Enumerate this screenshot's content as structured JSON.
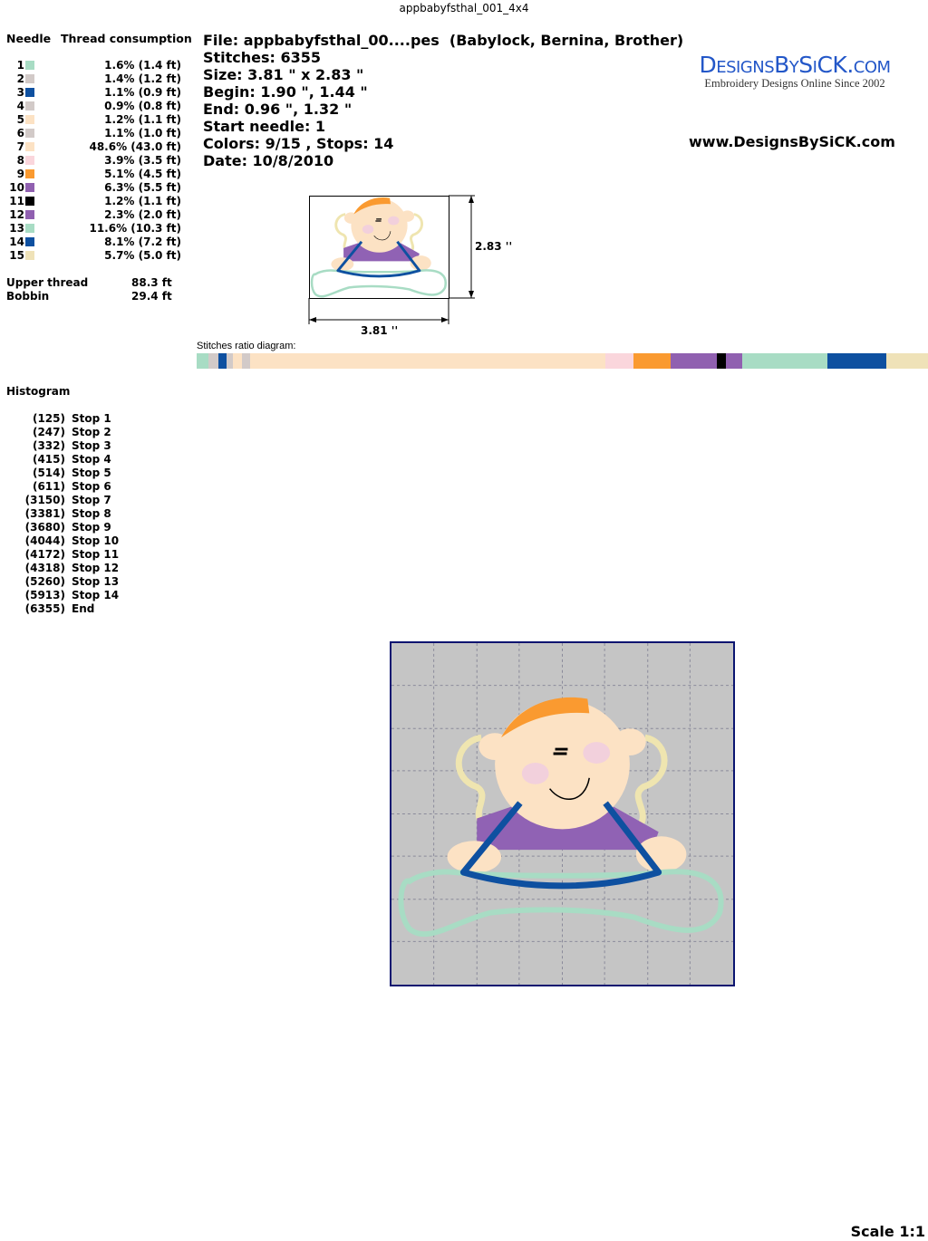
{
  "title": "appbabyfsthal_001_4x4",
  "table": {
    "header_needle": "Needle",
    "header_consumption": "Thread consumption",
    "rows": [
      {
        "n": "1",
        "color": "#a8dcc4",
        "v": "1.6% (1.4 ft)",
        "pct": 1.6
      },
      {
        "n": "2",
        "color": "#d2cac8",
        "v": "1.4% (1.2 ft)",
        "pct": 1.4
      },
      {
        "n": "3",
        "color": "#0e50a0",
        "v": "1.1% (0.9 ft)",
        "pct": 1.1
      },
      {
        "n": "4",
        "color": "#d2cac8",
        "v": "0.9% (0.8 ft)",
        "pct": 0.9
      },
      {
        "n": "5",
        "color": "#fce2c4",
        "v": "1.2% (1.1 ft)",
        "pct": 1.2
      },
      {
        "n": "6",
        "color": "#d2cac8",
        "v": "1.1% (1.0 ft)",
        "pct": 1.1
      },
      {
        "n": "7",
        "color": "#fce2c4",
        "v": "48.6% (43.0 ft)",
        "pct": 48.6
      },
      {
        "n": "8",
        "color": "#fad6dc",
        "v": "3.9% (3.5 ft)",
        "pct": 3.9
      },
      {
        "n": "9",
        "color": "#fa9a30",
        "v": "5.1% (4.5 ft)",
        "pct": 5.1
      },
      {
        "n": "10",
        "color": "#9060b0",
        "v": "6.3% (5.5 ft)",
        "pct": 6.3
      },
      {
        "n": "11",
        "color": "#000000",
        "v": "1.2% (1.1 ft)",
        "pct": 1.2
      },
      {
        "n": "12",
        "color": "#9060b0",
        "v": "2.3% (2.0 ft)",
        "pct": 2.3
      },
      {
        "n": "13",
        "color": "#a8dcc4",
        "v": "11.6% (10.3 ft)",
        "pct": 11.6
      },
      {
        "n": "14",
        "color": "#0e50a0",
        "v": "8.1% (7.2 ft)",
        "pct": 8.1
      },
      {
        "n": "15",
        "color": "#efe2b8",
        "v": "5.7% (5.0 ft)",
        "pct": 5.7
      }
    ],
    "upper_label": "Upper thread",
    "upper_value": "88.3 ft",
    "bobbin_label": "Bobbin",
    "bobbin_value": "29.4 ft"
  },
  "info": {
    "file": "File: appbabyfsthal_00....pes  (Babylock, Bernina, Brother)",
    "stitches": "Stitches: 6355",
    "size": "Size: 3.81 \" x 2.83 \"",
    "begin": "Begin: 1.90 \", 1.44 \"",
    "end": "End: 0.96 \", 1.32 \"",
    "start_needle": "Start needle: 1",
    "colors": "Colors: 9/15 , Stops: 14",
    "date": "Date: 10/8/2010"
  },
  "logo": {
    "name": "DesignsBySiCK.com",
    "tagline": "Embroidery Designs Online Since 2002"
  },
  "url": "www.DesignsBySiCK.com",
  "thumb": {
    "height_label": "2.83 ''",
    "width_label": "3.81 ''"
  },
  "ratio_label": "Stitches ratio diagram:",
  "histogram": {
    "title": "Histogram",
    "items": [
      {
        "c": "(125)",
        "l": "Stop 1"
      },
      {
        "c": "(247)",
        "l": "Stop 2"
      },
      {
        "c": "(332)",
        "l": "Stop 3"
      },
      {
        "c": "(415)",
        "l": "Stop 4"
      },
      {
        "c": "(514)",
        "l": "Stop 5"
      },
      {
        "c": "(611)",
        "l": "Stop 6"
      },
      {
        "c": "(3150)",
        "l": "Stop 7"
      },
      {
        "c": "(3381)",
        "l": "Stop 8"
      },
      {
        "c": "(3680)",
        "l": "Stop 9"
      },
      {
        "c": "(4044)",
        "l": "Stop 10"
      },
      {
        "c": "(4172)",
        "l": "Stop 11"
      },
      {
        "c": "(4318)",
        "l": "Stop 12"
      },
      {
        "c": "(5260)",
        "l": "Stop 13"
      },
      {
        "c": "(5913)",
        "l": "Stop 14"
      },
      {
        "c": "(6355)",
        "l": "End"
      }
    ]
  },
  "scale": "Scale 1:1"
}
